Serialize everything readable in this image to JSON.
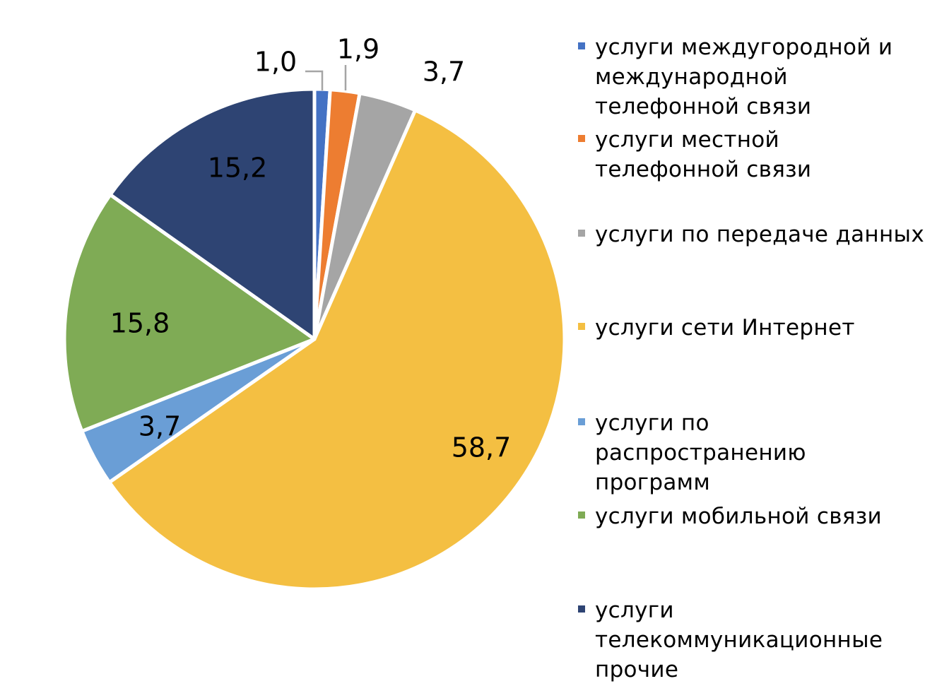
{
  "chart_data": {
    "type": "pie",
    "unit": "",
    "slices": [
      {
        "label": "услуги междугородной и международной телефонной связи",
        "value": 1.0,
        "display": "1,0",
        "color": "#4472c4"
      },
      {
        "label": "услуги местной телефонной связи",
        "value": 1.9,
        "display": "1,9",
        "color": "#ed7d31"
      },
      {
        "label": "услуги по передаче данных",
        "value": 3.7,
        "display": "3,7",
        "color": "#a5a5a5"
      },
      {
        "label": "услуги сети Интернет",
        "value": 58.7,
        "display": "58,7",
        "color": "#f4bf42"
      },
      {
        "label": "услуги по распространению программ",
        "value": 3.7,
        "display": "3,7",
        "color": "#6a9ed6"
      },
      {
        "label": "услуги мобильной связи",
        "value": 15.8,
        "display": "15,8",
        "color": "#7fab55"
      },
      {
        "label": "услуги телекоммуникационные прочие",
        "value": 15.2,
        "display": "15,2",
        "color": "#2e4473"
      }
    ],
    "legend_position": "right"
  }
}
